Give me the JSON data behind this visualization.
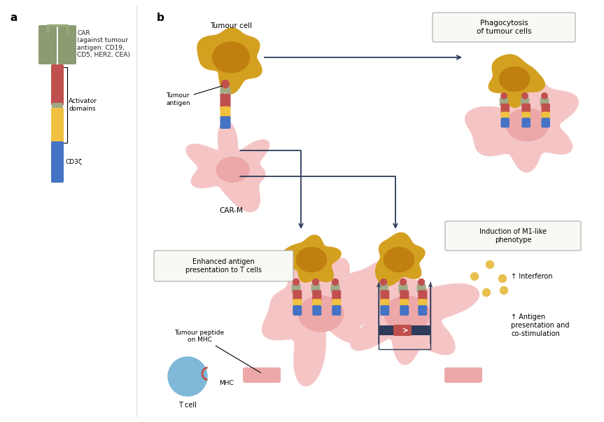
{
  "bg_color": "#ffffff",
  "label_a": "a",
  "label_b": "b",
  "car_color": "#8c9b72",
  "car_color2": "#9aaa7a",
  "red_color": "#c0504d",
  "pink_light": "#f5c5c5",
  "pink_med": "#eca8a8",
  "pink_dark": "#e07878",
  "yellow_color": "#f0c040",
  "blue_color": "#4472c4",
  "gold_body": "#d4a020",
  "gold_nucleus": "#c08010",
  "line_color": "#2d3a5a",
  "box_fill": "#f8f8f4",
  "box_edge": "#aaaaaa",
  "t_cell_color": "#80b8d8",
  "interferon_color": "#e8c050",
  "text_color": "#222222",
  "gray_seg": "#a0aa88",
  "text_labels": {
    "a": "a",
    "b": "b",
    "car_title": "CAR\n(against tumour\nantigen: CD19,\nCD5, HER2, CEA)",
    "activator": "Activator\ndomains",
    "cd3z": "CD3ζ",
    "tumour_cell": "Tumour cell",
    "tumour_antigen": "Tumour\nantigen",
    "car_m": "CAR-M",
    "phagocytosis": "Phagocytosis\nof tumour cells",
    "enhanced_antigen": "Enhanced antigen\npresentation to T cells",
    "induction_m1": "Induction of M1-like\nphenotype",
    "interferon": "↑ Interferon",
    "antigen_pres": "↑ Antigen\npresentation and\nco-stimulation",
    "tumour_peptide": "Tumour peptide\non MHC",
    "t_cell": "T cell",
    "mhc": "MHC"
  }
}
